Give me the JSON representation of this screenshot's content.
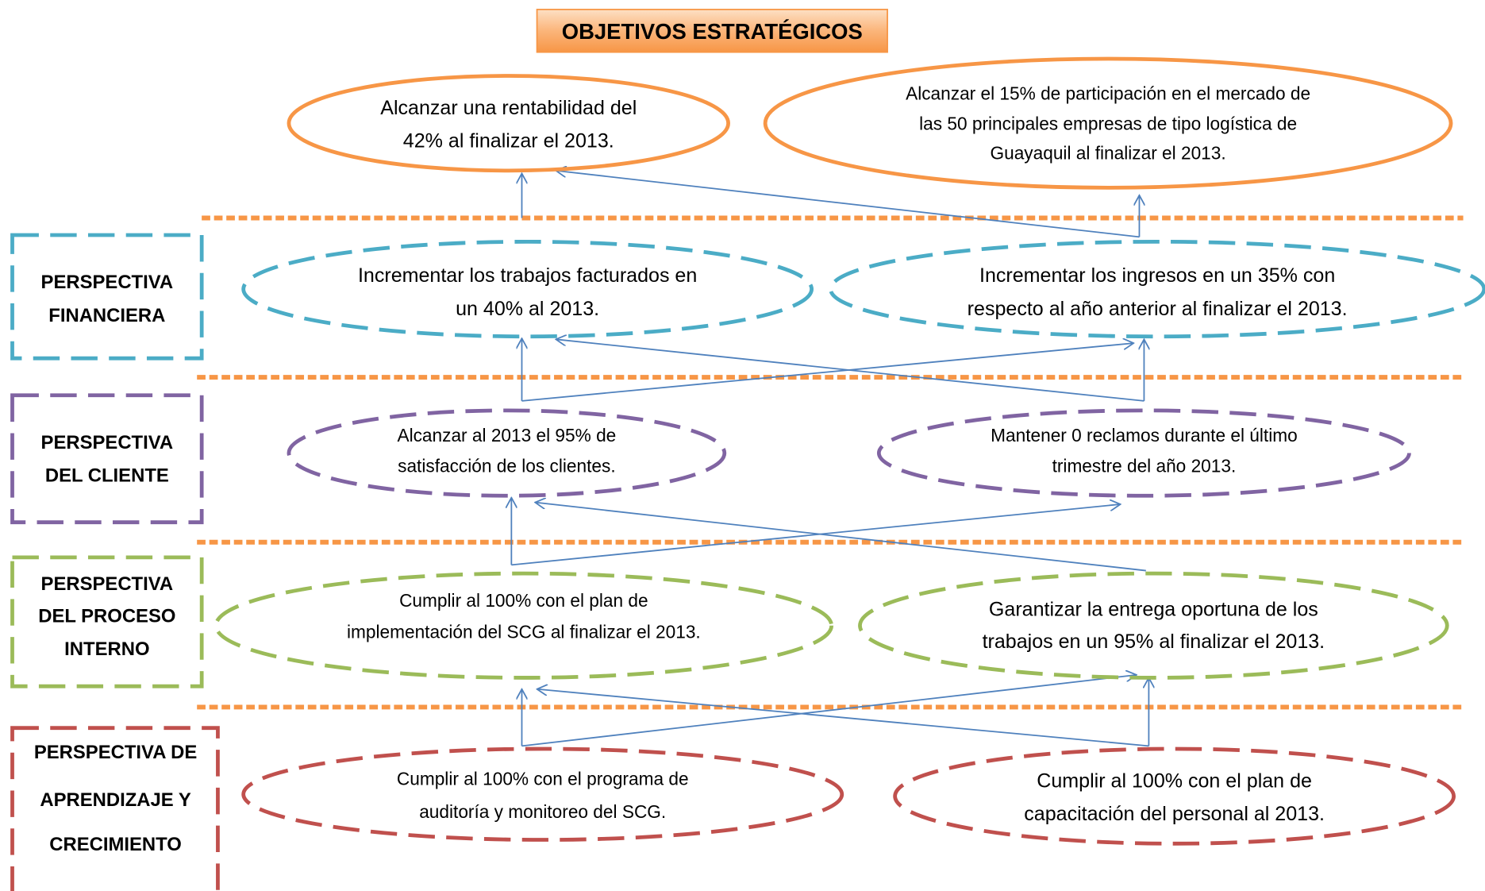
{
  "title": "OBJETIVOS ESTRATÉGICOS",
  "goals": [
    {
      "lines": [
        "Alcanzar una rentabilidad del",
        "42% al finalizar el 2013."
      ]
    },
    {
      "lines": [
        "Alcanzar el 15% de participación en el mercado de",
        "las 50 principales empresas de tipo logística de",
        "Guayaquil al finalizar el 2013."
      ]
    }
  ],
  "perspectives": [
    {
      "label": [
        "PERSPECTIVA",
        "FINANCIERA"
      ],
      "objectives": [
        {
          "lines": [
            "Incrementar los trabajos facturados en",
            "un 40% al 2013."
          ]
        },
        {
          "lines": [
            "Incrementar los ingresos en un 35% con",
            "respecto al año anterior al finalizar el 2013."
          ]
        }
      ]
    },
    {
      "label": [
        "PERSPECTIVA",
        "DEL CLIENTE"
      ],
      "objectives": [
        {
          "lines": [
            "Alcanzar al 2013 el 95% de",
            "satisfacción de los clientes."
          ]
        },
        {
          "lines": [
            "Mantener 0 reclamos durante el último",
            "trimestre del año 2013."
          ]
        }
      ]
    },
    {
      "label": [
        "PERSPECTIVA",
        "DEL PROCESO",
        "INTERNO"
      ],
      "objectives": [
        {
          "lines": [
            "Cumplir al 100% con el plan de",
            "implementación del SCG al finalizar el 2013."
          ]
        },
        {
          "lines": [
            "Garantizar la entrega oportuna de los",
            "trabajos en un 95% al finalizar el 2013."
          ]
        }
      ]
    },
    {
      "label": [
        "PERSPECTIVA DE",
        "APRENDIZAJE Y",
        "CRECIMIENTO"
      ],
      "objectives": [
        {
          "lines": [
            "Cumplir al 100% con el programa de",
            "auditoría y monitoreo del SCG."
          ]
        },
        {
          "lines": [
            "Cumplir al 100% con el plan de",
            "capacitación del personal al  2013."
          ]
        }
      ]
    }
  ]
}
